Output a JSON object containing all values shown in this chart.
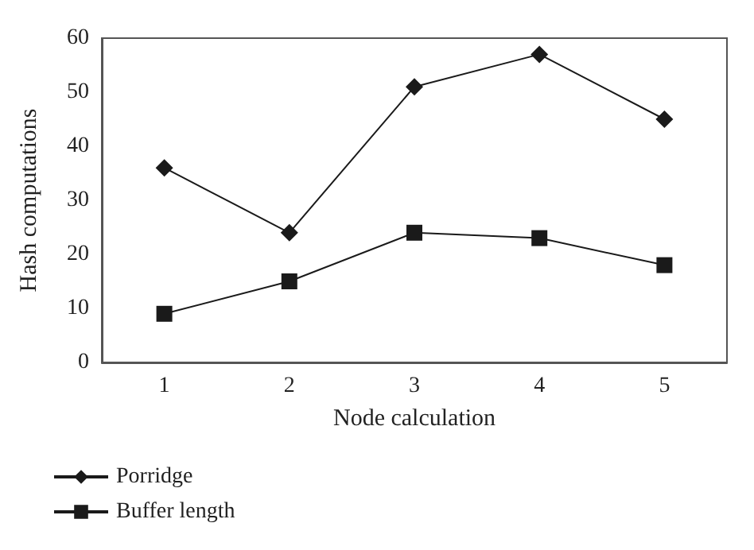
{
  "chart_data": {
    "type": "line",
    "xlabel": "Node calculation",
    "ylabel": "Hash computations",
    "categories": [
      "1",
      "2",
      "3",
      "4",
      "5"
    ],
    "series": [
      {
        "name": "Porridge",
        "color": "#1a1a1a",
        "marker": "diamond",
        "values": [
          36,
          24,
          51,
          57,
          45
        ]
      },
      {
        "name": "Buffer length",
        "color": "#1a1a1a",
        "marker": "square",
        "values": [
          9,
          15,
          24,
          23,
          18
        ]
      }
    ],
    "ylim": [
      0,
      60
    ],
    "yticks": [
      0,
      10,
      20,
      30,
      40,
      50,
      60
    ],
    "grid": false,
    "legend": "bottom left",
    "line_style": "solid"
  }
}
